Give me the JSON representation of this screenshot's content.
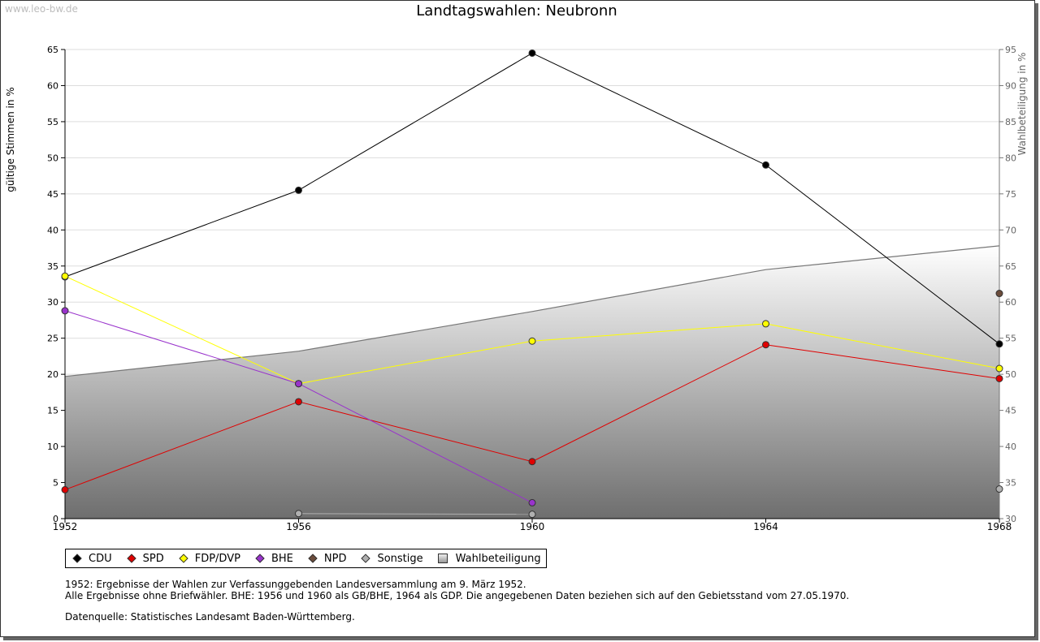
{
  "watermark": "www.leo-bw.de",
  "legend": [
    {
      "label": "CDU",
      "color": "#000000",
      "kind": "dot"
    },
    {
      "label": "SPD",
      "color": "#e00000",
      "kind": "dot"
    },
    {
      "label": "FDP/DVP",
      "color": "#ffff00",
      "kind": "dot"
    },
    {
      "label": "BHE",
      "color": "#9933cc",
      "kind": "dot"
    },
    {
      "label": "NPD",
      "color": "#6b4c3b",
      "kind": "dot"
    },
    {
      "label": "Sonstige",
      "color": "#b0b0b0",
      "kind": "dot"
    },
    {
      "label": "Wahlbeteiligung",
      "color": "#bbbbbb",
      "kind": "box"
    }
  ],
  "notes": {
    "line1": "1952: Ergebnisse der Wahlen zur Verfassunggebenden Landesversammlung am 9. März 1952.",
    "line2": "Alle Ergebnisse ohne Briefwähler. BHE: 1956 und 1960 als GB/BHE, 1964 als GDP. Die angegebenen Daten beziehen sich auf den Gebietsstand vom 27.05.1970.",
    "source": "Datenquelle: Statistisches Landesamt Baden-Württemberg."
  },
  "chart_data": {
    "type": "line",
    "title": "Landtagswahlen: Neubronn",
    "xlabel": "",
    "ylabel": "gültige Stimmen in %",
    "y2label": "Wahlbeteiligung in %",
    "categories": [
      "1952",
      "1956",
      "1960",
      "1964",
      "1968"
    ],
    "ylim": [
      0,
      65
    ],
    "yticks": [
      0,
      5,
      10,
      15,
      20,
      25,
      30,
      35,
      40,
      45,
      50,
      55,
      60,
      65
    ],
    "y2lim": [
      30,
      95
    ],
    "y2ticks": [
      30,
      35,
      40,
      45,
      50,
      55,
      60,
      65,
      70,
      75,
      80,
      85,
      90,
      95
    ],
    "series": [
      {
        "name": "CDU",
        "color": "#000000",
        "values": [
          33.5,
          45.5,
          64.5,
          49.0,
          24.2
        ]
      },
      {
        "name": "SPD",
        "color": "#e00000",
        "values": [
          4.0,
          16.2,
          7.9,
          24.1,
          19.4
        ]
      },
      {
        "name": "FDP/DVP",
        "color": "#ffff00",
        "values": [
          33.6,
          18.7,
          24.6,
          27.0,
          20.8
        ]
      },
      {
        "name": "BHE",
        "color": "#9933cc",
        "values": [
          28.8,
          18.7,
          2.2,
          null,
          null
        ]
      },
      {
        "name": "NPD",
        "color": "#6b4c3b",
        "values": [
          null,
          null,
          null,
          null,
          31.2
        ]
      },
      {
        "name": "Sonstige",
        "color": "#b0b0b0",
        "values": [
          null,
          0.7,
          0.6,
          null,
          4.1
        ]
      }
    ],
    "turnout": {
      "name": "Wahlbeteiligung",
      "axis": "right",
      "values": [
        49.7,
        53.2,
        58.7,
        64.5,
        67.8
      ]
    }
  }
}
